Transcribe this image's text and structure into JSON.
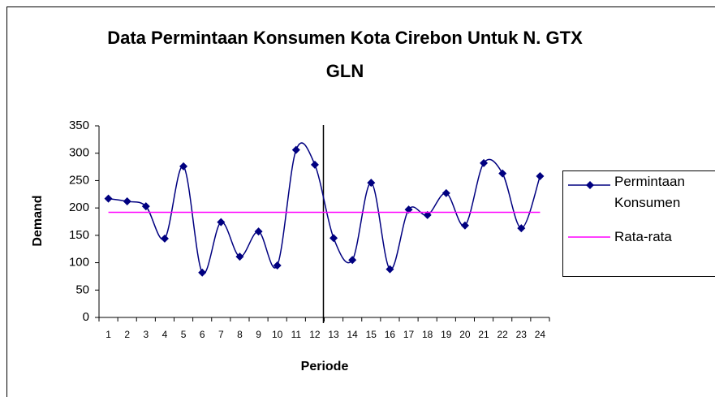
{
  "chart_data": {
    "type": "line",
    "title": "Data Permintaan Konsumen Kota Cirebon Untuk N. GTX GLN",
    "x_label": "Periode",
    "y_label": "Demand",
    "categories": [
      "1",
      "2",
      "3",
      "4",
      "5",
      "6",
      "7",
      "8",
      "9",
      "10",
      "11",
      "12",
      "13",
      "14",
      "15",
      "16",
      "17",
      "18",
      "19",
      "20",
      "21",
      "22",
      "23",
      "24"
    ],
    "series": [
      {
        "name": "Permintaan Konsumen",
        "color": "#000080",
        "marker": "diamond",
        "smooth": true,
        "values": [
          217,
          212,
          203,
          144,
          276,
          82,
          174,
          111,
          157,
          95,
          306,
          279,
          145,
          105,
          246,
          88,
          197,
          187,
          227,
          168,
          282,
          263,
          163,
          258
        ]
      },
      {
        "name": "Rata-rata",
        "color": "#ff00ff",
        "marker": "none",
        "smooth": false,
        "values": [
          192,
          192,
          192,
          192,
          192,
          192,
          192,
          192,
          192,
          192,
          192,
          192,
          192,
          192,
          192,
          192,
          192,
          192,
          192,
          192,
          192,
          192,
          192,
          192
        ]
      }
    ],
    "ylim": [
      0,
      350
    ],
    "yticks": [
      0,
      50,
      100,
      150,
      200,
      250,
      300,
      350
    ],
    "grid": false,
    "legend": "right"
  }
}
